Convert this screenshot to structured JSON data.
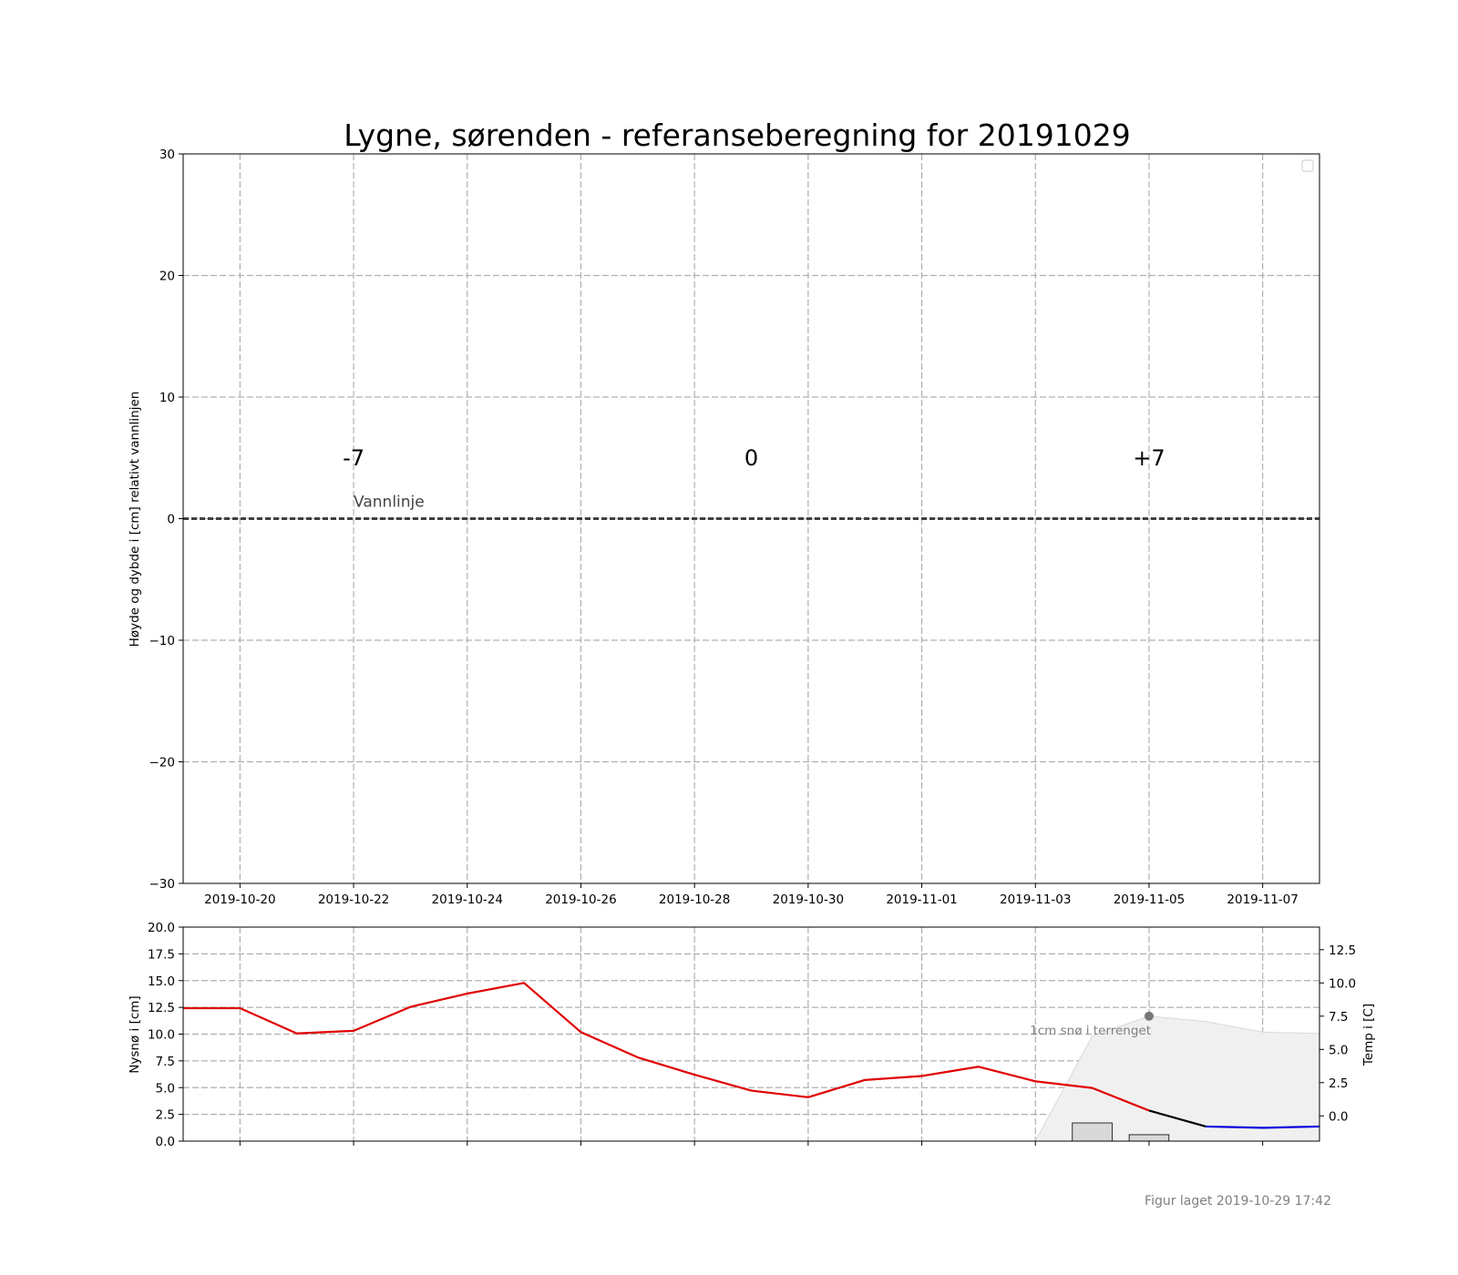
{
  "title": "Lygne, sørenden - referanseberegning for 20191029",
  "footer": "Figur laget 2019-10-29 17:42",
  "chart_data": [
    {
      "type": "line",
      "title": "Lygne, sørenden - referanseberegning for 20191029",
      "ylabel": "Høyde og dybde i [cm] relativt vannlinjen",
      "xlim": [
        "2019-10-19",
        "2019-11-08"
      ],
      "ylim": [
        -30,
        30
      ],
      "yticks": [
        -30,
        -20,
        -10,
        0,
        10,
        20,
        30
      ],
      "ytick_labels": [
        "−30",
        "−20",
        "−10",
        "0",
        "10",
        "20",
        "30"
      ],
      "xticks": [
        "2019-10-20",
        "2019-10-22",
        "2019-10-24",
        "2019-10-26",
        "2019-10-28",
        "2019-10-30",
        "2019-11-01",
        "2019-11-03",
        "2019-11-05",
        "2019-11-07"
      ],
      "grid": true,
      "legend": "top-right (empty)",
      "series": [],
      "reference_line": {
        "label": "Vannlinje",
        "y": 0,
        "label_x": "2019-10-22"
      },
      "day_markers": [
        {
          "label": "-7",
          "x": "2019-10-22"
        },
        {
          "label": "0",
          "x": "2019-10-29"
        },
        {
          "label": "+7",
          "x": "2019-11-05"
        }
      ]
    },
    {
      "type": "line",
      "xlim": [
        "2019-10-19",
        "2019-11-08"
      ],
      "ylabel": "Nysnø i [cm]",
      "ylim": [
        0,
        20
      ],
      "yticks": [
        0,
        2.5,
        5,
        7.5,
        10,
        12.5,
        15,
        17.5,
        20
      ],
      "ytick_labels": [
        "0.0",
        "2.5",
        "5.0",
        "7.5",
        "10.0",
        "12.5",
        "15.0",
        "17.5",
        "20.0"
      ],
      "ylabel_right": "Temp i [C]",
      "ylim_right": [
        -1.9,
        14.2
      ],
      "yticks_right": [
        0,
        2.5,
        5,
        7.5,
        10,
        12.5
      ],
      "ytick_labels_right": [
        "0.0",
        "2.5",
        "5.0",
        "7.5",
        "10.0",
        "12.5"
      ],
      "grid": true,
      "series": [
        {
          "kind": "temperature-observed",
          "color": "#e00000",
          "x": [
            "2019-10-19",
            "2019-10-20",
            "2019-10-21",
            "2019-10-22",
            "2019-10-23",
            "2019-10-24",
            "2019-10-25",
            "2019-10-26",
            "2019-10-27",
            "2019-10-28",
            "2019-10-29",
            "2019-10-30",
            "2019-10-31",
            "2019-11-01",
            "2019-11-02",
            "2019-11-03",
            "2019-11-04",
            "2019-11-05"
          ],
          "y": [
            8.1,
            8.1,
            6.2,
            6.4,
            8.2,
            9.2,
            10.0,
            6.3,
            4.4,
            3.1,
            1.9,
            1.4,
            2.7,
            3.0,
            3.7,
            2.6,
            2.1,
            0.4
          ]
        },
        {
          "kind": "temperature-forecast",
          "color": "#000000",
          "x": [
            "2019-11-05",
            "2019-11-06"
          ],
          "y": [
            0.4,
            -0.8
          ]
        },
        {
          "kind": "temperature-forecast-freezing",
          "color": "#0000dd",
          "x": [
            "2019-11-06",
            "2019-11-07",
            "2019-11-08"
          ],
          "y": [
            -0.8,
            -0.9,
            -0.8
          ]
        }
      ],
      "new_snow_bars": [
        {
          "x": "2019-11-04",
          "value": 1.7
        },
        {
          "x": "2019-11-05",
          "value": 0.6
        }
      ],
      "snow_on_ground": {
        "label": "1cm snø i terrenget",
        "marker_x": "2019-11-05",
        "x": [
          "2019-11-03",
          "2019-11-04",
          "2019-11-05",
          "2019-11-06",
          "2019-11-07",
          "2019-11-08"
        ],
        "y": [
          0,
          6.0,
          7.5,
          7.1,
          6.3,
          6.2
        ]
      }
    }
  ]
}
